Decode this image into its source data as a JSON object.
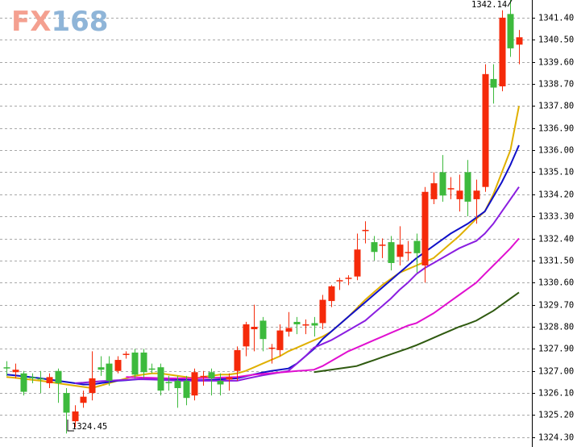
{
  "logo": {
    "prefix": "FX",
    "suffix": "168"
  },
  "chart_data": {
    "type": "candlestick",
    "up_color": "#f52a0a",
    "down_color": "#3dba3d",
    "grid": true,
    "ylim": [
      1323.9,
      1342.12
    ],
    "yticks": [
      {
        "value": 1341.4,
        "label": "1341.40"
      },
      {
        "value": 1340.5,
        "label": "1340.50"
      },
      {
        "value": 1339.6,
        "label": "1339.60"
      },
      {
        "value": 1338.7,
        "label": "1338.70"
      },
      {
        "value": 1337.8,
        "label": "1337.80"
      },
      {
        "value": 1336.9,
        "label": "1336.90"
      },
      {
        "value": 1336.0,
        "label": "1336.00"
      },
      {
        "value": 1335.1,
        "label": "1335.10"
      },
      {
        "value": 1334.2,
        "label": "1334.20"
      },
      {
        "value": 1333.3,
        "label": "1333.30"
      },
      {
        "value": 1332.4,
        "label": "1332.40"
      },
      {
        "value": 1331.5,
        "label": "1331.50"
      },
      {
        "value": 1330.6,
        "label": "1330.60"
      },
      {
        "value": 1329.7,
        "label": "1329.70"
      },
      {
        "value": 1328.8,
        "label": "1328.80"
      },
      {
        "value": 1327.9,
        "label": "1327.90"
      },
      {
        "value": 1327.0,
        "label": "1327.00"
      },
      {
        "value": 1326.1,
        "label": "1326.10"
      },
      {
        "value": 1325.2,
        "label": "1325.20"
      },
      {
        "value": 1324.3,
        "label": "1324.30"
      }
    ],
    "open": [
      1327.15,
      1326.95,
      1326.9,
      1326.75,
      1326.7,
      1326.5,
      1327.0,
      1326.1,
      1324.95,
      1325.7,
      1326.1,
      1327.15,
      1327.3,
      1327.0,
      1327.65,
      1327.75,
      1327.75,
      1327.1,
      1327.15,
      1326.55,
      1326.6,
      1326.6,
      1326.0,
      1326.75,
      1326.95,
      1326.6,
      1326.65,
      1327.0,
      1328.0,
      1328.7,
      1329.05,
      1327.9,
      1327.85,
      1328.6,
      1329.0,
      1328.85,
      1328.95,
      1328.95,
      1329.85,
      1330.65,
      1330.75,
      1330.85,
      1332.7,
      1332.25,
      1332.1,
      1332.25,
      1331.65,
      1331.85,
      1332.3,
      1331.3,
      1334.0,
      1335.1,
      1334.4,
      1334.0,
      1335.1,
      1334.0,
      1334.5,
      1338.9,
      1338.6,
      1341.55,
      1340.3
    ],
    "high": [
      1327.4,
      1327.3,
      1327.0,
      1326.9,
      1327.0,
      1326.9,
      1327.1,
      1326.3,
      1325.6,
      1326.2,
      1327.8,
      1327.6,
      1327.6,
      1327.6,
      1327.8,
      1327.9,
      1327.9,
      1327.3,
      1327.3,
      1326.8,
      1326.8,
      1326.8,
      1327.1,
      1327.0,
      1327.1,
      1326.9,
      1326.9,
      1328.0,
      1329.0,
      1329.7,
      1329.2,
      1328.1,
      1328.9,
      1329.4,
      1329.2,
      1329.1,
      1329.2,
      1330.1,
      1330.5,
      1330.8,
      1330.9,
      1332.6,
      1333.1,
      1332.5,
      1332.4,
      1332.5,
      1332.9,
      1332.3,
      1332.6,
      1334.5,
      1335.1,
      1335.8,
      1334.9,
      1335.0,
      1335.6,
      1334.8,
      1339.5,
      1339.5,
      1341.7,
      1342.14,
      1340.9
    ],
    "low": [
      1326.8,
      1326.7,
      1326.0,
      1326.5,
      1326.1,
      1326.3,
      1325.7,
      1324.45,
      1324.7,
      1325.5,
      1325.8,
      1326.8,
      1326.4,
      1326.9,
      1327.5,
      1326.7,
      1326.7,
      1326.9,
      1326.0,
      1326.2,
      1325.5,
      1325.6,
      1325.8,
      1326.4,
      1326.0,
      1326.0,
      1326.2,
      1326.6,
      1327.6,
      1327.8,
      1327.8,
      1327.3,
      1327.6,
      1328.4,
      1328.5,
      1328.5,
      1328.4,
      1328.7,
      1329.6,
      1330.3,
      1330.5,
      1330.7,
      1332.2,
      1331.5,
      1331.6,
      1331.1,
      1331.3,
      1331.5,
      1331.0,
      1330.6,
      1333.8,
      1333.9,
      1334.0,
      1333.5,
      1333.3,
      1333.0,
      1334.3,
      1337.9,
      1338.4,
      1339.8,
      1339.5
    ],
    "close": [
      1327.1,
      1327.05,
      1326.15,
      1326.7,
      1326.65,
      1326.75,
      1326.5,
      1325.3,
      1325.35,
      1325.95,
      1326.7,
      1327.05,
      1326.6,
      1327.45,
      1327.7,
      1326.85,
      1326.95,
      1327.05,
      1326.2,
      1326.5,
      1326.3,
      1325.9,
      1326.95,
      1326.8,
      1326.7,
      1326.45,
      1326.75,
      1327.85,
      1328.9,
      1328.8,
      1328.3,
      1327.95,
      1328.65,
      1328.75,
      1328.9,
      1328.9,
      1328.85,
      1329.9,
      1330.45,
      1330.7,
      1330.8,
      1331.95,
      1332.75,
      1331.85,
      1332.15,
      1331.4,
      1332.15,
      1331.85,
      1331.8,
      1334.3,
      1334.65,
      1334.15,
      1334.45,
      1334.35,
      1333.9,
      1334.35,
      1339.1,
      1338.55,
      1341.4,
      1340.15,
      1340.6
    ],
    "series": [
      {
        "color": "#e0b000",
        "values": [
          1326.75,
          1326.72,
          1326.68,
          1326.64,
          1326.6,
          1326.55,
          1326.5,
          1326.45,
          1326.4,
          1326.35,
          1326.3,
          1326.4,
          1326.5,
          1326.6,
          1326.7,
          1326.8,
          1326.85,
          1326.9,
          1326.9,
          1326.85,
          1326.8,
          1326.75,
          1326.7,
          1326.75,
          1326.8,
          1326.85,
          1326.85,
          1326.9,
          1327.0,
          1327.15,
          1327.3,
          1327.45,
          1327.6,
          1327.8,
          1327.95,
          1328.1,
          1328.25,
          1328.4,
          1328.6,
          1328.9,
          1329.2,
          1329.55,
          1329.9,
          1330.2,
          1330.5,
          1330.75,
          1331.0,
          1331.15,
          1331.3,
          1331.45,
          1331.6,
          1331.9,
          1332.2,
          1332.5,
          1332.85,
          1333.2,
          1333.5,
          1334.2,
          1335.1,
          1336.0,
          1337.8
        ]
      },
      {
        "color": "#1010c8",
        "values": [
          1326.85,
          1326.82,
          1326.78,
          1326.74,
          1326.7,
          1326.65,
          1326.6,
          1326.55,
          1326.5,
          1326.45,
          1326.45,
          1326.5,
          1326.55,
          1326.6,
          1326.62,
          1326.65,
          1326.68,
          1326.7,
          1326.7,
          1326.68,
          1326.66,
          1326.64,
          1326.62,
          1326.62,
          1326.64,
          1326.66,
          1326.68,
          1326.7,
          1326.78,
          1326.86,
          1326.94,
          1327.0,
          1327.05,
          1327.1,
          1327.3,
          1327.6,
          1327.9,
          1328.3,
          1328.6,
          1328.9,
          1329.2,
          1329.5,
          1329.8,
          1330.1,
          1330.4,
          1330.7,
          1331.0,
          1331.3,
          1331.6,
          1331.85,
          1332.1,
          1332.35,
          1332.6,
          1332.8,
          1333.0,
          1333.25,
          1333.5,
          1334.1,
          1334.7,
          1335.4,
          1336.2
        ]
      },
      {
        "color": "#8a1ee0",
        "values": [
          null,
          null,
          null,
          null,
          null,
          null,
          null,
          null,
          1326.5,
          1326.52,
          1326.55,
          1326.58,
          1326.6,
          1326.62,
          1326.64,
          1326.66,
          1326.66,
          1326.65,
          1326.64,
          1326.62,
          1326.6,
          1326.6,
          1326.6,
          1326.6,
          1326.6,
          1326.6,
          1326.6,
          1326.6,
          1326.68,
          1326.75,
          1326.82,
          1326.88,
          1326.94,
          1327.0,
          1327.3,
          1327.6,
          1327.95,
          1328.1,
          1328.25,
          1328.45,
          1328.65,
          1328.85,
          1329.05,
          1329.35,
          1329.65,
          1329.95,
          1330.3,
          1330.6,
          1330.95,
          1331.2,
          1331.4,
          1331.6,
          1331.8,
          1332.0,
          1332.15,
          1332.3,
          1332.6,
          1333.0,
          1333.5,
          1334.0,
          1334.5
        ]
      },
      {
        "color": "#e010d0",
        "values": [
          null,
          null,
          null,
          null,
          null,
          null,
          null,
          null,
          null,
          null,
          null,
          null,
          null,
          null,
          1326.75,
          1326.74,
          1326.73,
          1326.72,
          1326.71,
          1326.7,
          1326.7,
          1326.7,
          1326.7,
          1326.71,
          1326.72,
          1326.73,
          1326.74,
          1326.75,
          1326.8,
          1326.85,
          1326.88,
          1326.91,
          1326.94,
          1326.97,
          1327.0,
          1327.02,
          1327.05,
          1327.2,
          1327.4,
          1327.6,
          1327.8,
          1327.95,
          1328.1,
          1328.25,
          1328.4,
          1328.55,
          1328.7,
          1328.85,
          1328.95,
          1329.15,
          1329.35,
          1329.6,
          1329.85,
          1330.1,
          1330.35,
          1330.6,
          1330.95,
          1331.3,
          1331.65,
          1332.0,
          1332.4
        ]
      },
      {
        "color": "#2f5a10",
        "values": [
          null,
          null,
          null,
          null,
          null,
          null,
          null,
          null,
          null,
          null,
          null,
          null,
          null,
          null,
          null,
          null,
          null,
          null,
          null,
          null,
          null,
          null,
          null,
          null,
          null,
          null,
          null,
          null,
          null,
          null,
          null,
          null,
          null,
          null,
          null,
          null,
          1326.95,
          1327.0,
          1327.05,
          1327.1,
          1327.15,
          1327.2,
          1327.32,
          1327.44,
          1327.56,
          1327.68,
          1327.8,
          1327.92,
          1328.05,
          1328.2,
          1328.35,
          1328.5,
          1328.65,
          1328.8,
          1328.92,
          1329.05,
          1329.25,
          1329.45,
          1329.7,
          1329.95,
          1330.2
        ]
      }
    ],
    "annotations": [
      {
        "text": "1342.14"
      },
      {
        "text": "1324.45"
      }
    ]
  }
}
